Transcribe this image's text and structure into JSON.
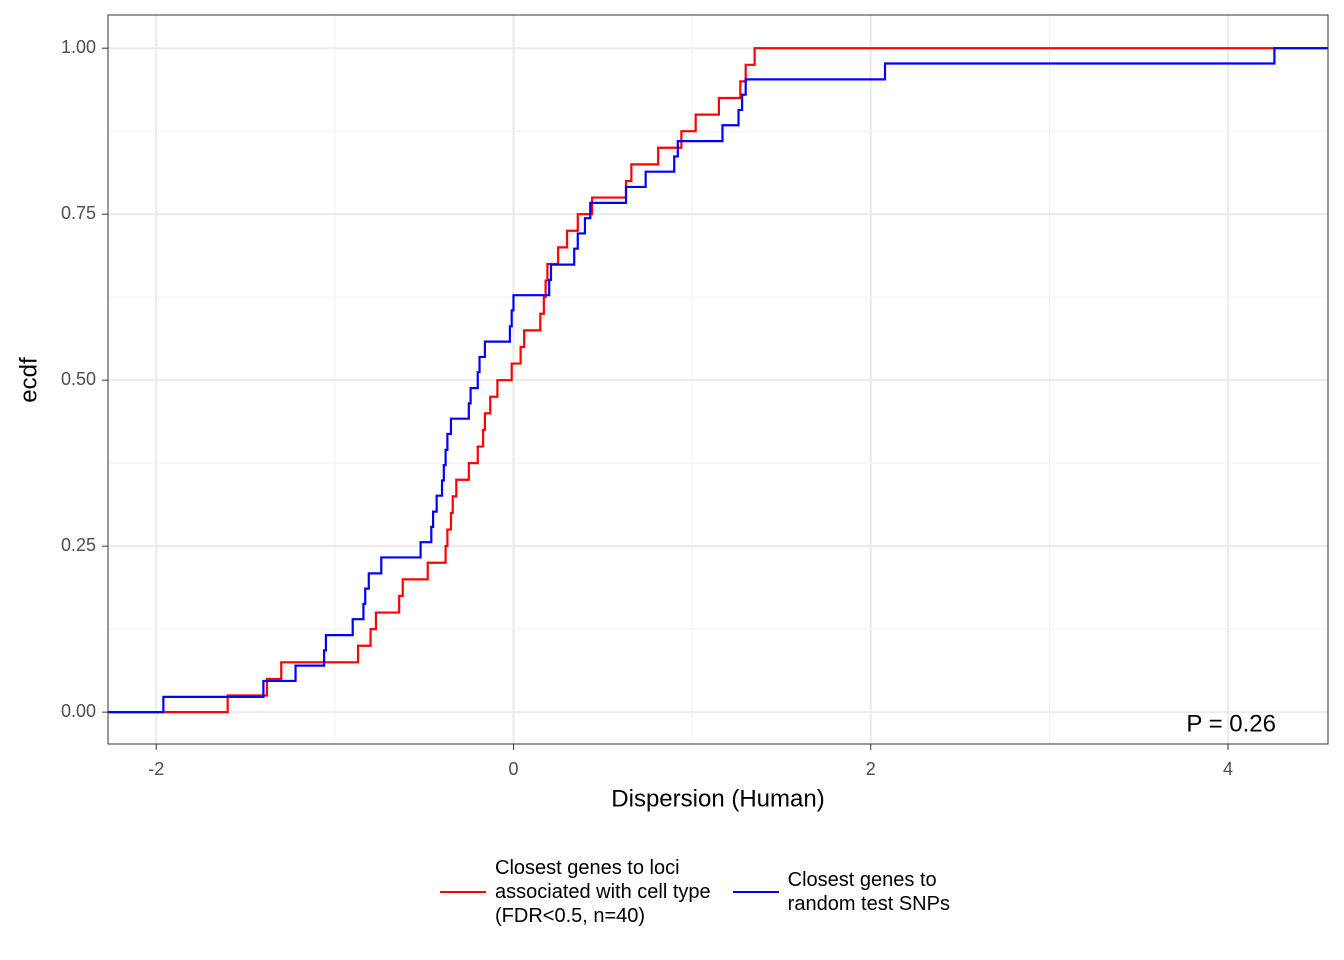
{
  "chart_data": {
    "type": "step",
    "x_label": "Dispersion (Human)",
    "y_label": "ecdf",
    "annotation": "P = 0.26",
    "xlim": [
      -2.27,
      4.56
    ],
    "ylim": [
      -0.048,
      1.05
    ],
    "xticks": [
      -2,
      0,
      2,
      4
    ],
    "xminor": [
      -1,
      1,
      3
    ],
    "yticks": [
      {
        "value": 0,
        "label": "0.00"
      },
      {
        "value": 0.25,
        "label": "0.25"
      },
      {
        "value": 0.5,
        "label": "0.50"
      },
      {
        "value": 0.75,
        "label": "0.75"
      },
      {
        "value": 1,
        "label": "1.00"
      }
    ],
    "yminor": [
      0.125,
      0.375,
      0.625,
      0.875
    ],
    "grid": true,
    "legend": "bottom",
    "series": [
      {
        "name": "Closest genes to loci\nassociated with cell type\n(FDR<0.5, n=40)",
        "color": "#ff0000",
        "x": [
          -1.6,
          -1.38,
          -1.3,
          -0.87,
          -0.8,
          -0.77,
          -0.64,
          -0.62,
          -0.48,
          -0.38,
          -0.37,
          -0.35,
          -0.34,
          -0.32,
          -0.25,
          -0.2,
          -0.17,
          -0.16,
          -0.13,
          -0.09,
          -0.01,
          0.04,
          0.06,
          0.15,
          0.17,
          0.18,
          0.19,
          0.25,
          0.3,
          0.36,
          0.44,
          0.63,
          0.66,
          0.81,
          0.94,
          1.02,
          1.15,
          1.27,
          1.3,
          1.35
        ],
        "values": [
          0.025,
          0.05,
          0.075,
          0.1,
          0.125,
          0.15,
          0.175,
          0.2,
          0.225,
          0.25,
          0.275,
          0.3,
          0.325,
          0.35,
          0.375,
          0.4,
          0.425,
          0.45,
          0.475,
          0.5,
          0.525,
          0.55,
          0.575,
          0.6,
          0.625,
          0.65,
          0.675,
          0.7,
          0.725,
          0.75,
          0.775,
          0.8,
          0.825,
          0.85,
          0.875,
          0.9,
          0.925,
          0.95,
          0.975,
          1.0
        ]
      },
      {
        "name": "Closest genes to\nrandom test SNPs",
        "color": "#0000ff",
        "x": [
          -1.96,
          -1.4,
          -1.22,
          -1.06,
          -1.05,
          -0.9,
          -0.84,
          -0.83,
          -0.81,
          -0.74,
          -0.52,
          -0.46,
          -0.45,
          -0.43,
          -0.4,
          -0.39,
          -0.38,
          -0.37,
          -0.35,
          -0.25,
          -0.24,
          -0.2,
          -0.19,
          -0.16,
          -0.02,
          -0.01,
          0.0,
          0.2,
          0.21,
          0.34,
          0.36,
          0.4,
          0.43,
          0.63,
          0.74,
          0.9,
          0.92,
          1.17,
          1.26,
          1.28,
          1.3,
          2.08,
          4.26
        ],
        "values": [
          0.023,
          0.047,
          0.07,
          0.093,
          0.116,
          0.14,
          0.163,
          0.186,
          0.209,
          0.233,
          0.256,
          0.279,
          0.302,
          0.326,
          0.349,
          0.372,
          0.395,
          0.419,
          0.442,
          0.465,
          0.488,
          0.512,
          0.535,
          0.558,
          0.581,
          0.605,
          0.628,
          0.651,
          0.674,
          0.698,
          0.721,
          0.744,
          0.767,
          0.791,
          0.814,
          0.837,
          0.86,
          0.884,
          0.907,
          0.93,
          0.953,
          0.977,
          1.0
        ]
      }
    ]
  }
}
